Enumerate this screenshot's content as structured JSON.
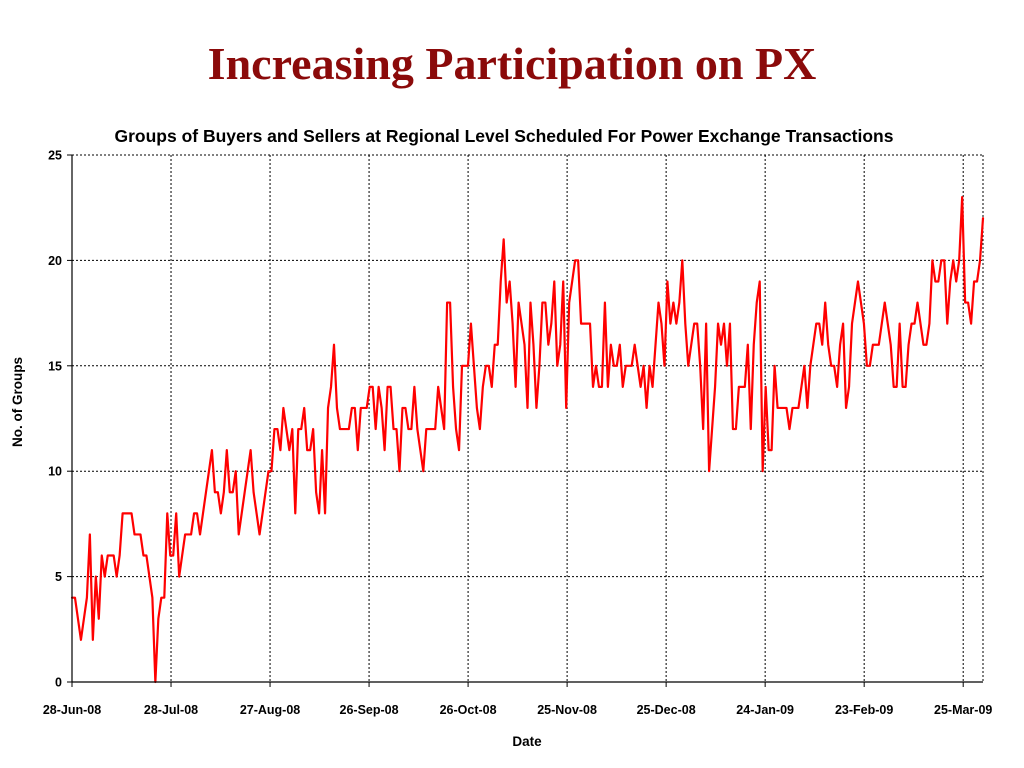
{
  "slide": {
    "title": "Increasing Participation on PX"
  },
  "colors": {
    "title": "#8B0A0A",
    "series": "#FF0000",
    "grid": "#000000"
  },
  "chart_data": {
    "type": "line",
    "title": "Groups of Buyers and Sellers at Regional Level Scheduled For Power Exchange Transactions",
    "xlabel": "Date",
    "ylabel": "No. of Groups",
    "x_start": "28-Jun-08",
    "x_end": "31-Mar-09",
    "ylim": [
      0,
      25
    ],
    "yticks": [
      0,
      5,
      10,
      15,
      20,
      25
    ],
    "xticks": [
      "28-Jun-08",
      "28-Jul-08",
      "27-Aug-08",
      "26-Sep-08",
      "26-Oct-08",
      "25-Nov-08",
      "25-Dec-08",
      "24-Jan-09",
      "23-Feb-09",
      "25-Mar-09"
    ],
    "grid": true,
    "series": [
      {
        "color": "#FF0000",
        "values": [
          4,
          4,
          3,
          2,
          3,
          4,
          7,
          2,
          5,
          3,
          6,
          5,
          6,
          6,
          6,
          5,
          6,
          8,
          8,
          8,
          8,
          7,
          7,
          7,
          6,
          6,
          5,
          4,
          0,
          3,
          4,
          4,
          8,
          6,
          6,
          8,
          5,
          6,
          7,
          7,
          7,
          8,
          8,
          7,
          8,
          9,
          10,
          11,
          9,
          9,
          8,
          9,
          11,
          9,
          9,
          10,
          7,
          8,
          9,
          10,
          11,
          9,
          8,
          7,
          8,
          9,
          10,
          10,
          12,
          12,
          11,
          13,
          12,
          11,
          12,
          8,
          12,
          12,
          13,
          11,
          11,
          12,
          9,
          8,
          11,
          8,
          13,
          14,
          16,
          13,
          12,
          12,
          12,
          12,
          13,
          13,
          11,
          13,
          13,
          13,
          14,
          14,
          12,
          14,
          13,
          11,
          14,
          14,
          12,
          12,
          10,
          13,
          13,
          12,
          12,
          14,
          12,
          11,
          10,
          12,
          12,
          12,
          12,
          14,
          13,
          12,
          18,
          18,
          14,
          12,
          11,
          15,
          15,
          15,
          17,
          15,
          13,
          12,
          14,
          15,
          15,
          14,
          16,
          16,
          19,
          21,
          18,
          19,
          17,
          14,
          18,
          17,
          16,
          13,
          18,
          16,
          13,
          15,
          18,
          18,
          16,
          17,
          19,
          15,
          16,
          19,
          13,
          18,
          19,
          20,
          20,
          17,
          17,
          17,
          17,
          14,
          15,
          14,
          14,
          18,
          14,
          16,
          15,
          15,
          16,
          14,
          15,
          15,
          15,
          16,
          15,
          14,
          15,
          13,
          15,
          14,
          16,
          18,
          17,
          15,
          19,
          17,
          18,
          17,
          18,
          20,
          17,
          15,
          16,
          17,
          17,
          15,
          12,
          17,
          10,
          12,
          14,
          17,
          16,
          17,
          15,
          17,
          12,
          12,
          14,
          14,
          14,
          16,
          12,
          16,
          18,
          19,
          10,
          14,
          11,
          11,
          15,
          13,
          13,
          13,
          13,
          12,
          13,
          13,
          13,
          14,
          15,
          13,
          15,
          16,
          17,
          17,
          16,
          18,
          16,
          15,
          15,
          14,
          16,
          17,
          13,
          14,
          17,
          18,
          19,
          18,
          17,
          15,
          15,
          16,
          16,
          16,
          17,
          18,
          17,
          16,
          14,
          14,
          17,
          14,
          14,
          16,
          17,
          17,
          18,
          17,
          16,
          16,
          17,
          20,
          19,
          19,
          20,
          20,
          17,
          19,
          20,
          19,
          20,
          23,
          18,
          18,
          17,
          19,
          19,
          20,
          22
        ]
      }
    ]
  }
}
